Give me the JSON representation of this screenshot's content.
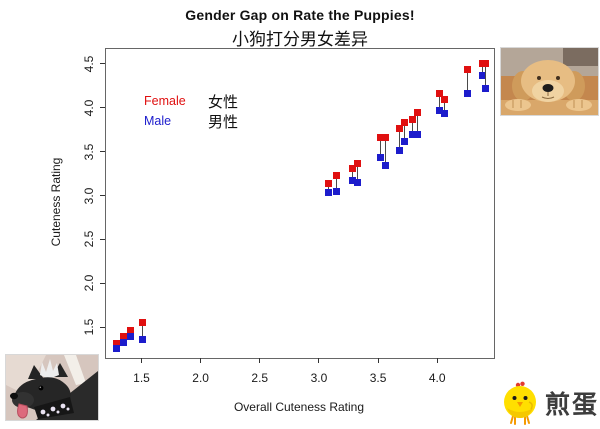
{
  "chart_data": {
    "type": "scatter",
    "title": "Gender Gap on Rate the Puppies!",
    "subtitle": "小狗打分男女差异",
    "xlabel": "Overall Cuteness Rating",
    "ylabel": "Cuteness Rating",
    "xlim": [
      1.2,
      4.48
    ],
    "ylim": [
      1.15,
      4.67
    ],
    "x_ticks": {
      "values": [
        1.5,
        2.0,
        2.5,
        3.0,
        3.5,
        4.0
      ],
      "labels": [
        "1.5",
        "2.0",
        "2.5",
        "3.0",
        "3.5",
        "4.0"
      ]
    },
    "y_ticks": {
      "values": [
        1.5,
        2.0,
        2.5,
        3.0,
        3.5,
        4.0,
        4.5
      ],
      "labels": [
        "1.5",
        "2.0",
        "2.5",
        "3.0",
        "3.5",
        "4.0",
        "4.5"
      ]
    },
    "grid": false,
    "legend_position": "upper-left-inside",
    "marker": "filled-square",
    "pair_connector_color": "#4a4a4a",
    "x": [
      1.29,
      1.35,
      1.41,
      1.51,
      3.08,
      3.15,
      3.28,
      3.33,
      3.52,
      3.56,
      3.68,
      3.72,
      3.79,
      3.83,
      4.02,
      4.06,
      4.26,
      4.38,
      4.41
    ],
    "series": [
      {
        "name": "Female",
        "name_zh": "女性",
        "color": "#e01010",
        "values": [
          1.31,
          1.39,
          1.46,
          1.56,
          3.14,
          3.23,
          3.31,
          3.37,
          3.66,
          3.66,
          3.77,
          3.83,
          3.87,
          3.95,
          4.16,
          4.1,
          4.44,
          4.5,
          4.5
        ]
      },
      {
        "name": "Male",
        "name_zh": "男性",
        "color": "#1c1ccc",
        "values": [
          1.26,
          1.33,
          1.4,
          1.36,
          3.03,
          3.05,
          3.17,
          3.15,
          3.43,
          3.34,
          3.51,
          3.62,
          3.7,
          3.7,
          3.97,
          3.93,
          4.16,
          4.37,
          4.22
        ]
      }
    ]
  },
  "legend": {
    "female_en": "Female",
    "female_zh": "女性",
    "male_en": "Male",
    "male_zh": "男性"
  },
  "watermark": {
    "text": "煎蛋"
  },
  "icons": {
    "watermark_chick": "chick-icon",
    "photo_top_right": "sleeping-golden-puppy-photo",
    "photo_bottom_left": "black-dog-with-mohawk-photo"
  }
}
